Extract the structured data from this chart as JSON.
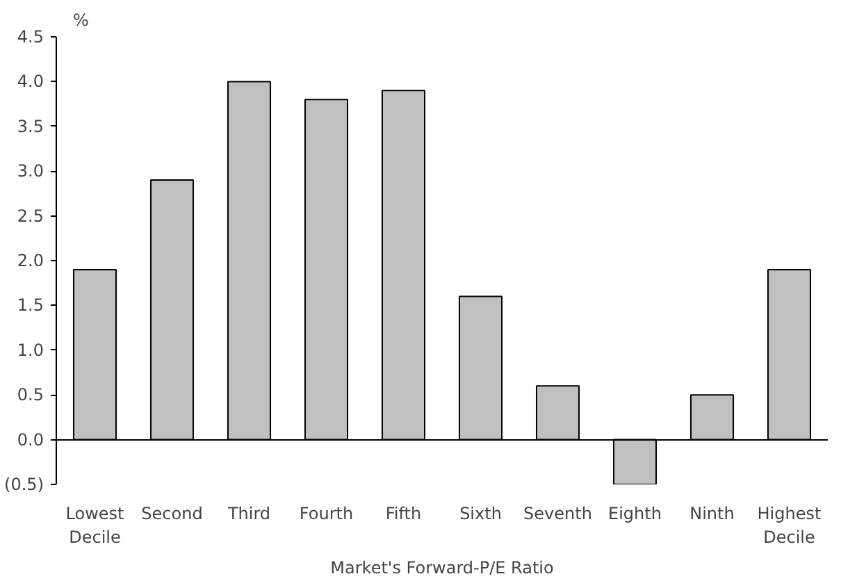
{
  "chart_data": {
    "type": "bar",
    "xlabel": "Market's Forward-P/E Ratio",
    "ylabel": "%",
    "categories": [
      "Lowest\nDecile",
      "Second",
      "Third",
      "Fourth",
      "Fifth",
      "Sixth",
      "Seventh",
      "Eighth",
      "Ninth",
      "Highest\nDecile"
    ],
    "values": [
      1.9,
      2.9,
      4.0,
      3.8,
      3.9,
      1.6,
      0.6,
      -0.5,
      0.5,
      1.9
    ],
    "color": "#c0c0c0",
    "ylim": [
      -0.5,
      4.5
    ],
    "yticks": [
      {
        "value": -0.5,
        "label": "(0.5)"
      },
      {
        "value": 0,
        "label": "0.0"
      },
      {
        "value": 0.5,
        "label": "0.5"
      },
      {
        "value": 1,
        "label": "1.0"
      },
      {
        "value": 1.5,
        "label": "1.5"
      },
      {
        "value": 2,
        "label": "2.0"
      },
      {
        "value": 2.5,
        "label": "2.5"
      },
      {
        "value": 3,
        "label": "3.0"
      },
      {
        "value": 3.5,
        "label": "3.5"
      },
      {
        "value": 4,
        "label": "4.0"
      },
      {
        "value": 4.5,
        "label": "4.5"
      }
    ]
  }
}
